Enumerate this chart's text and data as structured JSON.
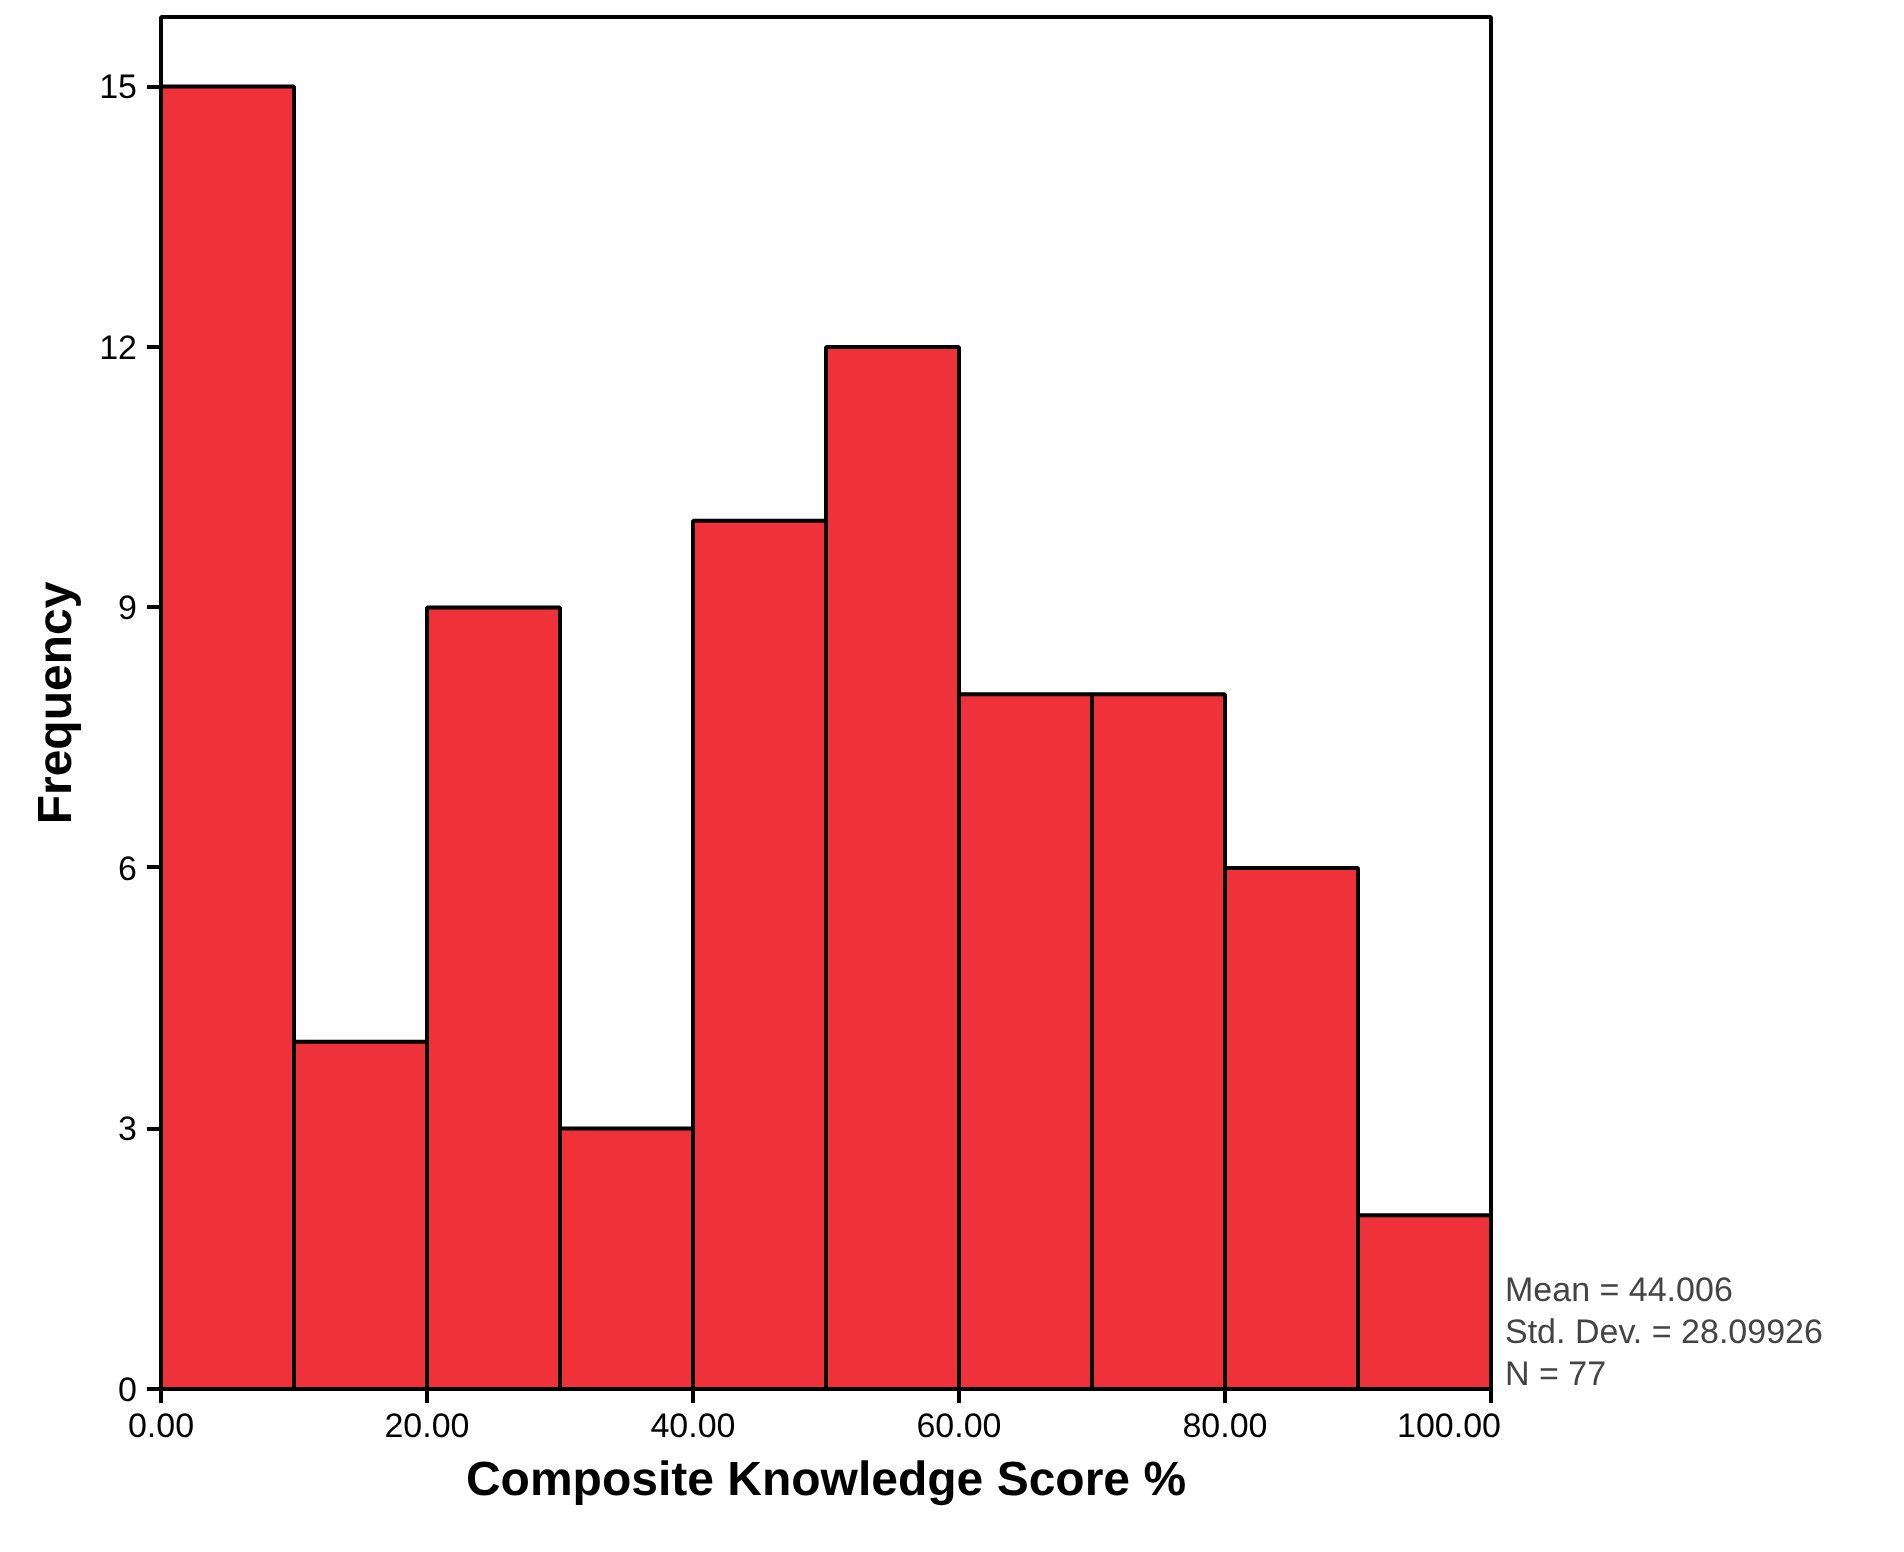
{
  "chart_data": {
    "type": "histogram",
    "xlabel": "Composite Knowledge Score %",
    "ylabel": "Frequency",
    "bins": [
      0,
      10,
      20,
      30,
      40,
      50,
      60,
      70,
      80,
      90,
      100
    ],
    "values": [
      15,
      4,
      9,
      3,
      10,
      12,
      8,
      8,
      6,
      2
    ],
    "color": "#ef3239",
    "xlim": [
      0,
      100
    ],
    "ylim": [
      0,
      15.8
    ],
    "xticks": [
      {
        "value": 0,
        "label": "0.00"
      },
      {
        "value": 20,
        "label": "20.00"
      },
      {
        "value": 40,
        "label": "40.00"
      },
      {
        "value": 60,
        "label": "60.00"
      },
      {
        "value": 80,
        "label": "80.00"
      },
      {
        "value": 100,
        "label": "100.00"
      }
    ],
    "yticks": [
      0,
      3,
      6,
      9,
      12,
      15
    ],
    "grid": false,
    "annotations": [
      "Mean = 44.006",
      "Std. Dev. = 28.09926",
      "N = 77"
    ]
  }
}
